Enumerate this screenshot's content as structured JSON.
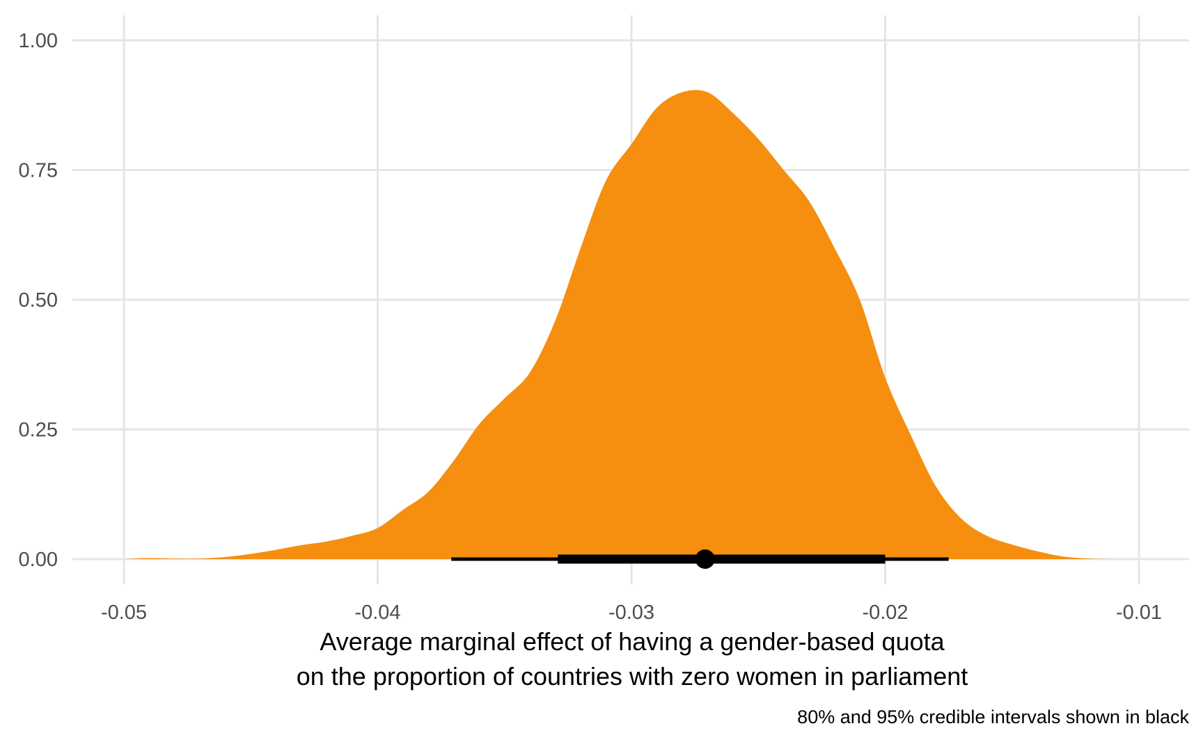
{
  "chart_data": {
    "type": "area",
    "xlabel_lines": [
      "Average marginal effect of having a gender-based quota",
      "on the proportion of countries with zero women in parliament"
    ],
    "ylabel": "",
    "caption": "80% and 95% credible intervals shown in black",
    "xlim": [
      -0.05,
      -0.01
    ],
    "ylim": [
      0,
      1
    ],
    "x_ticks": [
      -0.05,
      -0.04,
      -0.03,
      -0.02,
      -0.01
    ],
    "x_tick_labels": [
      "-0.05",
      "-0.04",
      "-0.03",
      "-0.02",
      "-0.01"
    ],
    "y_ticks": [
      0,
      0.25,
      0.5,
      0.75,
      1
    ],
    "y_tick_labels": [
      "0.00",
      "0.25",
      "0.50",
      "0.75",
      "1.00"
    ],
    "grid": true,
    "fill_color": "#f68e10",
    "interval_color": "#000000",
    "density": {
      "x": [
        -0.05,
        -0.049,
        -0.048,
        -0.047,
        -0.046,
        -0.045,
        -0.044,
        -0.043,
        -0.042,
        -0.041,
        -0.04,
        -0.039,
        -0.038,
        -0.037,
        -0.036,
        -0.035,
        -0.034,
        -0.033,
        -0.032,
        -0.031,
        -0.03,
        -0.029,
        -0.028,
        -0.027,
        -0.026,
        -0.025,
        -0.024,
        -0.023,
        -0.022,
        -0.021,
        -0.02,
        -0.019,
        -0.018,
        -0.017,
        -0.016,
        -0.015,
        -0.014,
        -0.013,
        -0.012,
        -0.011,
        -0.01
      ],
      "y": [
        0.0,
        0.002,
        0.001,
        0.001,
        0.004,
        0.01,
        0.018,
        0.027,
        0.034,
        0.045,
        0.06,
        0.095,
        0.13,
        0.19,
        0.26,
        0.31,
        0.36,
        0.46,
        0.6,
        0.73,
        0.8,
        0.87,
        0.9,
        0.9,
        0.86,
        0.81,
        0.75,
        0.69,
        0.6,
        0.5,
        0.35,
        0.24,
        0.14,
        0.078,
        0.045,
        0.028,
        0.015,
        0.005,
        0.001,
        0.0,
        0.0
      ]
    },
    "point_estimate": -0.0271,
    "interval_95": [
      -0.0371,
      -0.0175
    ],
    "interval_80": [
      -0.0329,
      -0.02
    ]
  }
}
